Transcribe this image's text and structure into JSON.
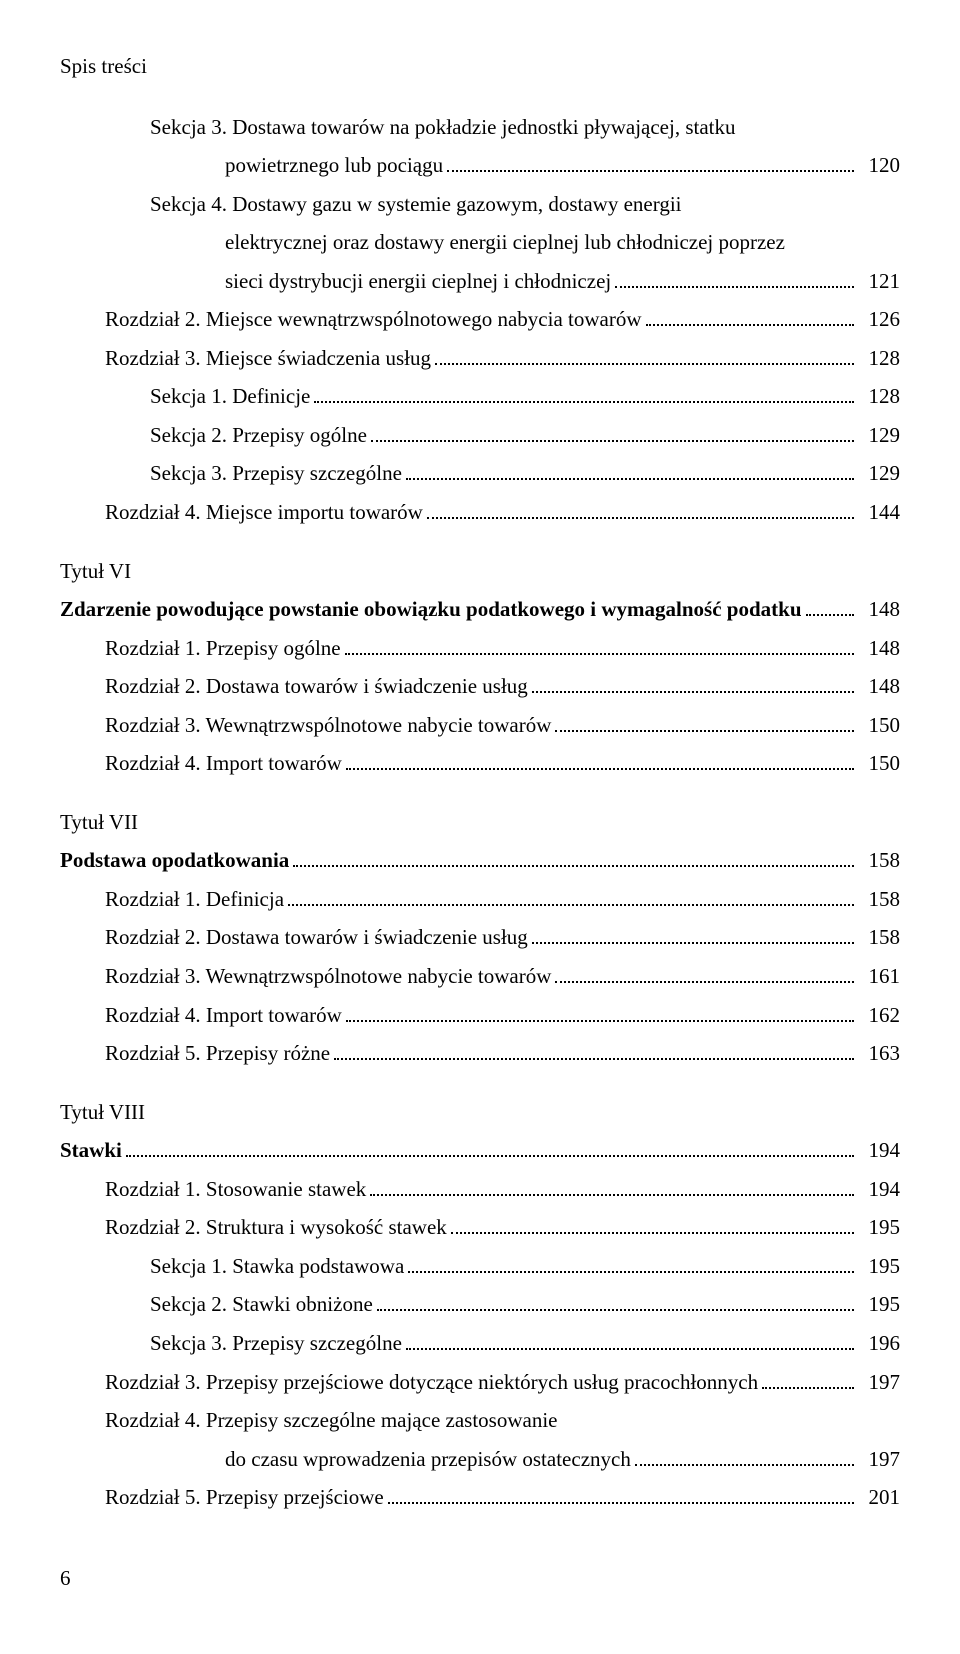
{
  "header": "Spis treści",
  "entries": [
    {
      "text": "Sekcja 3. Dostawa towarów na pokładzie jednostki pływającej, statku",
      "indent": 2,
      "continuation": true
    },
    {
      "text": "powietrznego lub pociągu",
      "page": "120",
      "indent": 3
    },
    {
      "text": "Sekcja 4. Dostawy gazu w systemie gazowym, dostawy energii",
      "indent": 2,
      "continuation": true
    },
    {
      "text": "elektrycznej oraz dostawy energii cieplnej lub chłodniczej poprzez",
      "indent": 3,
      "continuation": true
    },
    {
      "text": "sieci dystrybucji energii cieplnej i chłodniczej",
      "page": "121",
      "indent": 3
    },
    {
      "text": "Rozdział 2. Miejsce wewnątrzwspólnotowego nabycia towarów",
      "page": "126",
      "indent": 1
    },
    {
      "text": "Rozdział 3. Miejsce świadczenia usług",
      "page": "128",
      "indent": 1
    },
    {
      "text": "Sekcja 1. Definicje",
      "page": "128",
      "indent": 2
    },
    {
      "text": "Sekcja 2. Przepisy ogólne",
      "page": "129",
      "indent": 2
    },
    {
      "text": "Sekcja 3. Przepisy szczególne",
      "page": "129",
      "indent": 2
    },
    {
      "text": "Rozdział 4. Miejsce importu towarów",
      "page": "144",
      "indent": 1
    },
    {
      "text": "Tytuł VI",
      "title": true
    },
    {
      "text": "Zdarzenie powodujące powstanie obowiązku podatkowego i wymagalność podatku",
      "page": "148",
      "bold": true
    },
    {
      "text": "Rozdział 1. Przepisy ogólne",
      "page": "148",
      "indent": 1
    },
    {
      "text": "Rozdział 2. Dostawa towarów i świadczenie usług",
      "page": "148",
      "indent": 1
    },
    {
      "text": "Rozdział 3. Wewnątrzwspólnotowe nabycie towarów",
      "page": "150",
      "indent": 1
    },
    {
      "text": "Rozdział 4. Import towarów",
      "page": "150",
      "indent": 1
    },
    {
      "text": "Tytuł VII",
      "title": true
    },
    {
      "text": "Podstawa opodatkowania",
      "page": "158",
      "bold": true
    },
    {
      "text": "Rozdział 1. Definicja",
      "page": "158",
      "indent": 1
    },
    {
      "text": "Rozdział 2. Dostawa towarów i świadczenie usług",
      "page": "158",
      "indent": 1
    },
    {
      "text": "Rozdział 3. Wewnątrzwspólnotowe nabycie towarów",
      "page": "161",
      "indent": 1
    },
    {
      "text": "Rozdział 4. Import towarów",
      "page": "162",
      "indent": 1
    },
    {
      "text": "Rozdział 5. Przepisy różne",
      "page": "163",
      "indent": 1
    },
    {
      "text": "Tytuł VIII",
      "title": true
    },
    {
      "text": "Stawki",
      "page": "194",
      "bold": true
    },
    {
      "text": "Rozdział 1. Stosowanie stawek",
      "page": "194",
      "indent": 1
    },
    {
      "text": "Rozdział 2. Struktura i wysokość stawek",
      "page": "195",
      "indent": 1
    },
    {
      "text": "Sekcja 1. Stawka podstawowa",
      "page": "195",
      "indent": 2
    },
    {
      "text": "Sekcja 2. Stawki obniżone",
      "page": "195",
      "indent": 2
    },
    {
      "text": "Sekcja 3. Przepisy szczególne",
      "page": "196",
      "indent": 2
    },
    {
      "text": "Rozdział 3. Przepisy przejściowe dotyczące niektórych usług pracochłonnych",
      "page": "197",
      "indent": 1
    },
    {
      "text": "Rozdział 4. Przepisy szczególne mające zastosowanie",
      "indent": 1,
      "continuation": true
    },
    {
      "text": "do czasu wprowadzenia przepisów ostatecznych",
      "page": "197",
      "indent": 3
    },
    {
      "text": "Rozdział 5. Przepisy przejściowe",
      "page": "201",
      "indent": 1
    }
  ],
  "pageNumber": "6"
}
